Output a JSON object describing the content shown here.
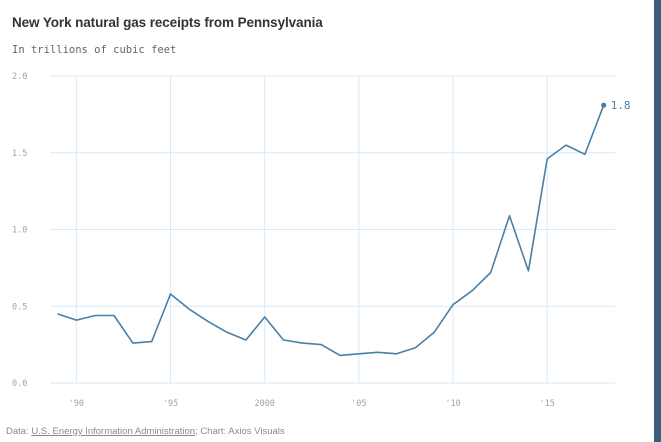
{
  "chart_data": {
    "type": "line",
    "title": "New York natural gas receipts from Pennsylvania",
    "subtitle": "In trillions of cubic feet",
    "x": [
      1989,
      1990,
      1991,
      1992,
      1993,
      1994,
      1995,
      1996,
      1997,
      1998,
      1999,
      2000,
      2001,
      2002,
      2003,
      2004,
      2005,
      2006,
      2007,
      2008,
      2009,
      2010,
      2011,
      2012,
      2013,
      2014,
      2015,
      2016,
      2017,
      2018
    ],
    "series": [
      {
        "values": [
          0.45,
          0.41,
          0.44,
          0.44,
          0.26,
          0.27,
          0.58,
          0.48,
          0.4,
          0.33,
          0.28,
          0.43,
          0.28,
          0.26,
          0.25,
          0.18,
          0.19,
          0.2,
          0.19,
          0.23,
          0.33,
          0.51,
          0.6,
          0.72,
          1.09,
          0.73,
          1.46,
          1.55,
          1.49,
          1.81
        ]
      }
    ],
    "end_label": "1.8",
    "ylim": [
      0,
      2
    ],
    "yticks": [
      0,
      0.5,
      1,
      1.5,
      2
    ],
    "ytick_labels": [
      "0.0",
      "0.5",
      "1.0",
      "1.5",
      "2.0"
    ],
    "xticks": [
      1990,
      1995,
      2000,
      2005,
      2010,
      2015
    ],
    "xtick_labels": [
      "'90",
      "'95",
      "2000",
      "'05",
      "'10",
      "'15"
    ],
    "xlim": [
      1988.6,
      2018.6
    ],
    "grid": true,
    "line_color": "#4a7fa6",
    "grid_color": "#d6eaf8"
  },
  "footer": {
    "prefix": "Data: ",
    "source_link": "U.S. Energy Information Administration",
    "suffix": "; Chart: Axios Visuals"
  }
}
